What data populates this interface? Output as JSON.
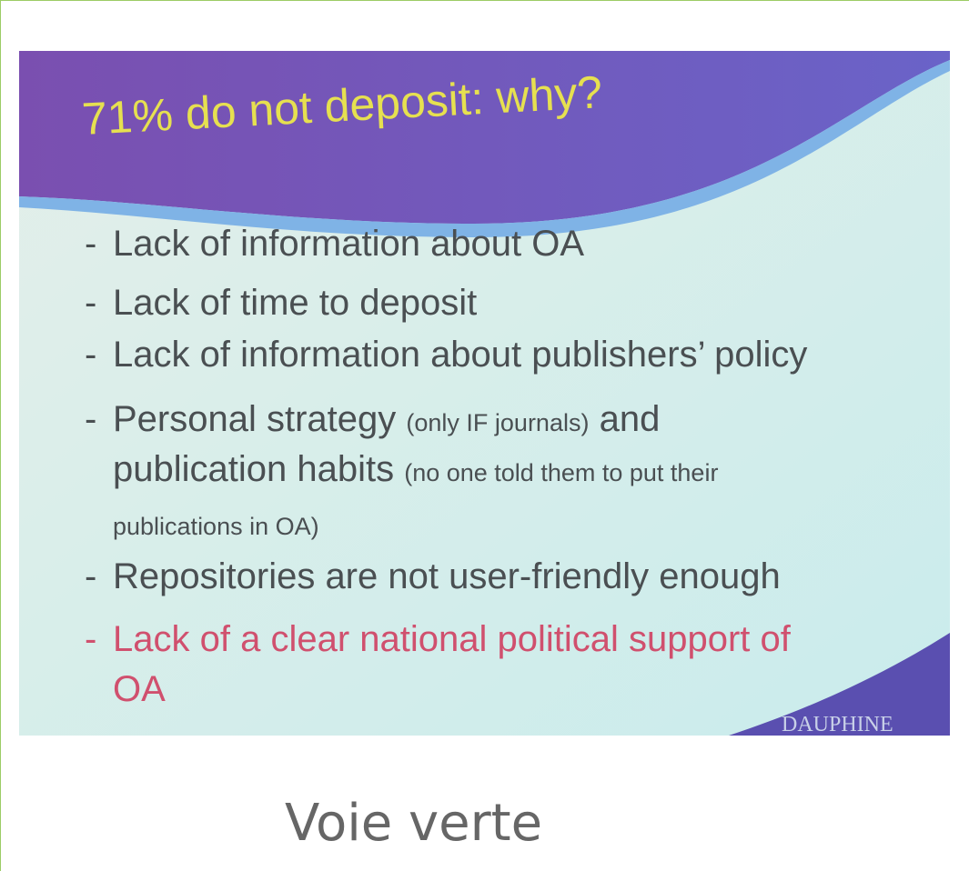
{
  "slide": {
    "title": "71% do not deposit: why?",
    "bullet": "-",
    "items": [
      {
        "lines": [
          [
            "Lack of information about OA"
          ]
        ]
      },
      {
        "lines": [
          [
            "Lack of time to deposit"
          ]
        ]
      },
      {
        "lines": [
          [
            "Lack of information about publishers’ policy"
          ]
        ]
      },
      {
        "lines": [
          [
            "Personal strategy ",
            "(only IF journals)",
            " and"
          ],
          [
            "publication habits ",
            "(no one told them to put their"
          ],
          [
            "publications in OA)"
          ]
        ]
      },
      {
        "lines": [
          [
            "Repositories are not user-friendly enough"
          ]
        ]
      },
      {
        "lines": [
          [
            "Lack of a clear national political support of"
          ],
          [
            "OA"
          ]
        ]
      }
    ],
    "logo": "DAUPHINE"
  },
  "caption": "Voie verte"
}
